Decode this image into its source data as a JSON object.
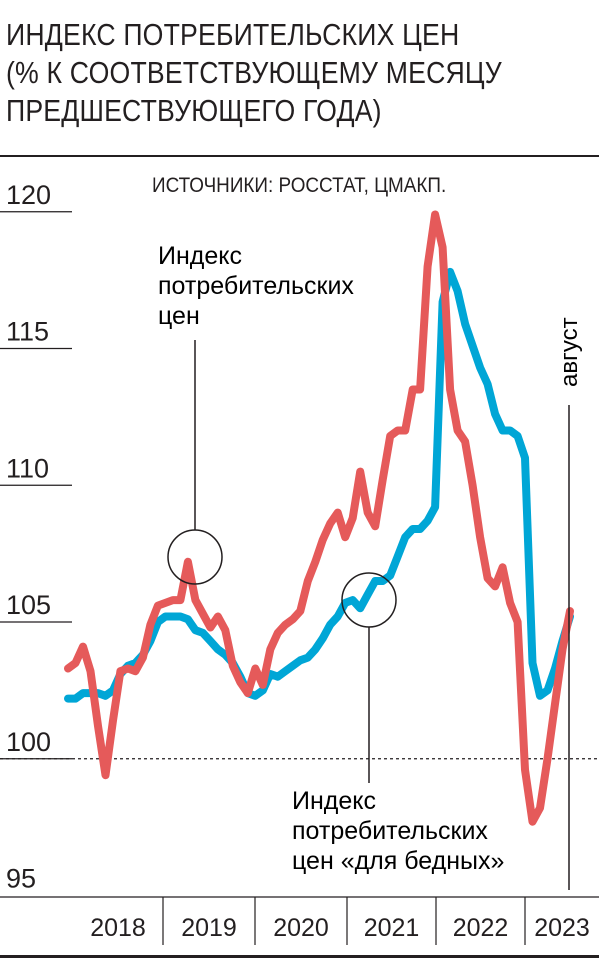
{
  "title_lines": [
    "ИНДЕКС ПОТРЕБИТЕЛЬСКИХ ЦЕН",
    "(% К СООТВЕТСТВУЮЩЕМУ МЕСЯЦУ",
    "ПРЕДШЕСТВУЮЩЕГО ГОДА)"
  ],
  "source": "ИСТОЧНИКИ: РОССТАТ, ЦМАКП.",
  "colors": {
    "cpi": "#00a6d6",
    "cpi_poor": "#e55a5a",
    "text": "#231f20"
  },
  "annotations": {
    "cpi_lines": [
      "Индекс",
      "потребительских",
      "цен"
    ],
    "cpi_poor_lines": [
      "Индекс",
      "потребительских",
      "цен «для бедных»"
    ],
    "last_month": "август"
  },
  "chart_data": {
    "type": "line",
    "ylim": [
      95,
      121
    ],
    "yticks": [
      95,
      100,
      105,
      110,
      115,
      120
    ],
    "reference_line": 100,
    "x_start": "2018-01",
    "x_end": "2023-08",
    "year_labels": [
      "2018",
      "2019",
      "2020",
      "2021",
      "2022",
      "2023"
    ],
    "series": [
      {
        "key": "cpi",
        "values": [
          102.2,
          102.2,
          102.4,
          102.4,
          102.4,
          102.3,
          102.5,
          103.1,
          103.4,
          103.5,
          103.8,
          104.3,
          105.0,
          105.2,
          105.2,
          105.2,
          105.1,
          104.7,
          104.6,
          104.3,
          104.0,
          103.8,
          103.5,
          103.0,
          102.4,
          102.3,
          102.5,
          103.1,
          103.0,
          103.2,
          103.4,
          103.6,
          103.7,
          104.0,
          104.4,
          104.9,
          105.2,
          105.7,
          105.8,
          105.5,
          106.0,
          106.5,
          106.5,
          106.7,
          107.4,
          108.1,
          108.4,
          108.4,
          108.7,
          109.2,
          116.7,
          117.8,
          117.1,
          115.9,
          115.1,
          114.3,
          113.7,
          112.6,
          112.0,
          112.0,
          111.8,
          111.0,
          103.5,
          102.3,
          102.5,
          103.3,
          104.3,
          105.2
        ]
      },
      {
        "key": "cpi_poor",
        "values": [
          103.3,
          103.5,
          104.1,
          103.2,
          101.2,
          99.4,
          101.4,
          103.2,
          103.3,
          103.2,
          103.7,
          104.9,
          105.6,
          105.7,
          105.8,
          105.8,
          107.2,
          105.8,
          105.3,
          104.8,
          105.2,
          104.7,
          103.4,
          102.8,
          102.4,
          103.3,
          102.7,
          104.0,
          104.6,
          104.9,
          105.1,
          105.4,
          106.5,
          107.2,
          108.0,
          108.6,
          109.0,
          108.1,
          108.8,
          110.5,
          109.0,
          108.5,
          110.2,
          111.8,
          112.0,
          112.0,
          113.5,
          113.5,
          118.0,
          119.9,
          118.7,
          113.5,
          112.0,
          111.6,
          110.0,
          108.1,
          106.6,
          106.3,
          107.0,
          105.7,
          105.0,
          99.6,
          97.7,
          98.2,
          100.0,
          102.0,
          104.0,
          105.4
        ]
      }
    ]
  }
}
